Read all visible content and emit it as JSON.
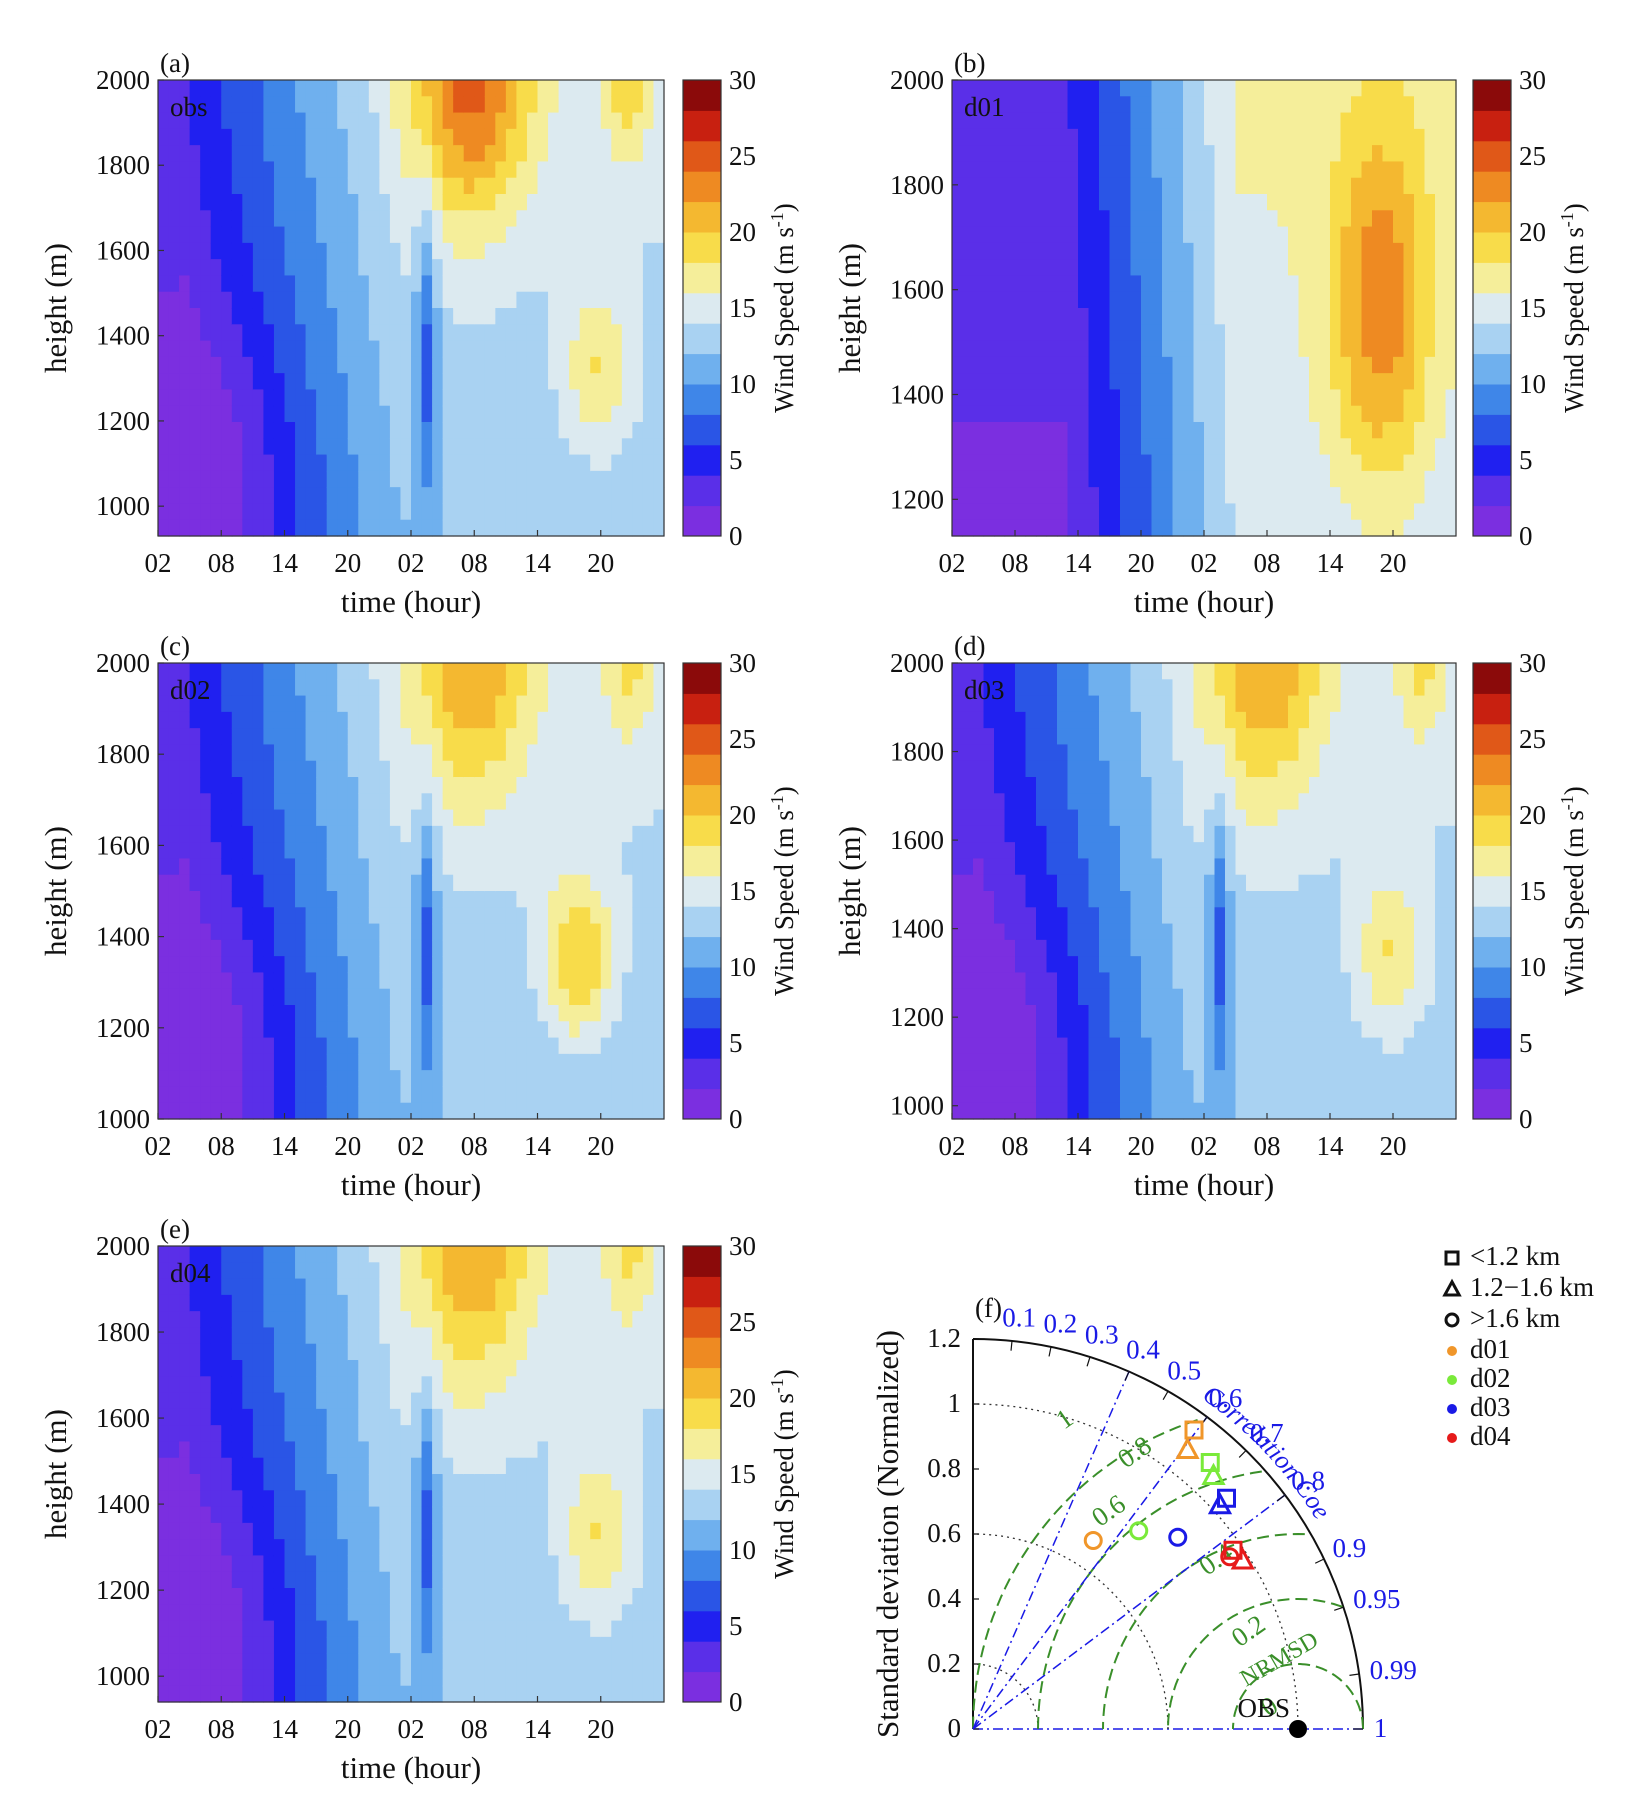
{
  "colors": {
    "colormap": [
      "#7b2fe0",
      "#5a2fe8",
      "#2020f0",
      "#2a55e6",
      "#3f86e8",
      "#6fb0ee",
      "#a9d2f2",
      "#dceaf0",
      "#f5ee9a",
      "#f8dc4a",
      "#f4b830",
      "#ee8a22",
      "#e05818",
      "#c82010",
      "#8b0a0a"
    ],
    "obs": "#000000",
    "d01": "#f0962a",
    "d02": "#7aea3a",
    "d03": "#1a1ae6",
    "d04": "#e61a1a",
    "corr": "#1a1ae6",
    "rmsd": "#3a8f2a"
  },
  "panels": [
    {
      "label": "(a)",
      "name": "obs",
      "xlabel": "time (hour)",
      "ylabel": "height (m)",
      "xticks": [
        "02",
        "08",
        "14",
        "20",
        "02",
        "08",
        "14",
        "20"
      ],
      "yticks": [
        "1000",
        "1200",
        "1400",
        "1600",
        "1800",
        "2000"
      ],
      "ylim": [
        930,
        2000
      ],
      "cbar_label": "Wind Speed",
      "cbar_ticks": [
        "0",
        "5",
        "10",
        "15",
        "20",
        "25",
        "30"
      ]
    },
    {
      "label": "(b)",
      "name": "d01",
      "xlabel": "time (hour)",
      "ylabel": "height (m)",
      "xticks": [
        "02",
        "08",
        "14",
        "20",
        "02",
        "08",
        "14",
        "20"
      ],
      "yticks": [
        "1200",
        "1400",
        "1600",
        "1800",
        "2000"
      ],
      "ylim": [
        1130,
        2000
      ],
      "cbar_label": "Wind Speed",
      "cbar_ticks": [
        "0",
        "5",
        "10",
        "15",
        "20",
        "25",
        "30"
      ]
    },
    {
      "label": "(c)",
      "name": "d02",
      "xlabel": "time (hour)",
      "ylabel": "height (m)",
      "xticks": [
        "02",
        "08",
        "14",
        "20",
        "02",
        "08",
        "14",
        "20"
      ],
      "yticks": [
        "1000",
        "1200",
        "1400",
        "1600",
        "1800",
        "2000"
      ],
      "ylim": [
        1000,
        2000
      ],
      "cbar_label": "Wind Speed",
      "cbar_ticks": [
        "0",
        "5",
        "10",
        "15",
        "20",
        "25",
        "30"
      ]
    },
    {
      "label": "(d)",
      "name": "d03",
      "xlabel": "time (hour)",
      "ylabel": "height (m)",
      "xticks": [
        "02",
        "08",
        "14",
        "20",
        "02",
        "08",
        "14",
        "20"
      ],
      "yticks": [
        "1000",
        "1200",
        "1400",
        "1600",
        "1800",
        "2000"
      ],
      "ylim": [
        970,
        2000
      ],
      "cbar_label": "Wind Speed",
      "cbar_ticks": [
        "0",
        "5",
        "10",
        "15",
        "20",
        "25",
        "30"
      ]
    },
    {
      "label": "(e)",
      "name": "d04",
      "xlabel": "time (hour)",
      "ylabel": "height (m)",
      "xticks": [
        "02",
        "08",
        "14",
        "20",
        "02",
        "08",
        "14",
        "20"
      ],
      "yticks": [
        "1000",
        "1200",
        "1400",
        "1600",
        "1800",
        "2000"
      ],
      "ylim": [
        940,
        2000
      ],
      "cbar_label": "Wind Speed",
      "cbar_ticks": [
        "0",
        "5",
        "10",
        "15",
        "20",
        "25",
        "30"
      ]
    }
  ],
  "chart_data": {
    "type": "scatter",
    "label": "(f)",
    "ylabel": "Standard deviation (Normalized)",
    "std_ticks": [
      "0",
      "0.2",
      "0.4",
      "0.6",
      "0.8",
      "1",
      "1.2"
    ],
    "corr_title": "Correlation Coefficient",
    "corr_ticks": [
      "0.1",
      "0.2",
      "0.3",
      "0.4",
      "0.5",
      "0.6",
      "0.7",
      "0.8",
      "0.9",
      "0.95",
      "0.99",
      "1"
    ],
    "corr_lines": [
      0.4,
      0.6,
      0.8
    ],
    "rmsd_title": "NRMSD",
    "rmsd_levels": [
      0.2,
      0.4,
      0.6,
      0.8,
      1
    ],
    "rmsd_labels": [
      "0",
      "0.2",
      "0.4",
      "0.6",
      "0.8",
      "1"
    ],
    "obs_label": "OBS",
    "legend_shapes": [
      {
        "shape": "square",
        "label": "<1.2 km"
      },
      {
        "shape": "triangle",
        "label": "1.2−1.6 km"
      },
      {
        "shape": "circle",
        "label": ">1.6 km"
      }
    ],
    "legend_series": [
      {
        "label": "d01",
        "color": "#f0962a"
      },
      {
        "label": "d02",
        "color": "#7aea3a"
      },
      {
        "label": "d03",
        "color": "#1a1ae6"
      },
      {
        "label": "d04",
        "color": "#e61a1a"
      }
    ],
    "points": [
      {
        "series": "d01",
        "shape": "square",
        "x": 0.68,
        "y": 0.92
      },
      {
        "series": "d01",
        "shape": "triangle",
        "x": 0.66,
        "y": 0.86
      },
      {
        "series": "d01",
        "shape": "circle",
        "x": 0.37,
        "y": 0.58
      },
      {
        "series": "d02",
        "shape": "square",
        "x": 0.73,
        "y": 0.82
      },
      {
        "series": "d02",
        "shape": "triangle",
        "x": 0.74,
        "y": 0.78
      },
      {
        "series": "d02",
        "shape": "circle",
        "x": 0.51,
        "y": 0.61
      },
      {
        "series": "d03",
        "shape": "square",
        "x": 0.78,
        "y": 0.71
      },
      {
        "series": "d03",
        "shape": "triangle",
        "x": 0.76,
        "y": 0.69
      },
      {
        "series": "d03",
        "shape": "circle",
        "x": 0.63,
        "y": 0.59
      },
      {
        "series": "d04",
        "shape": "square",
        "x": 0.8,
        "y": 0.55
      },
      {
        "series": "d04",
        "shape": "triangle",
        "x": 0.83,
        "y": 0.52
      },
      {
        "series": "d04",
        "shape": "circle",
        "x": 0.79,
        "y": 0.53
      }
    ],
    "obs": {
      "x": 1.0,
      "y": 0.0
    }
  }
}
